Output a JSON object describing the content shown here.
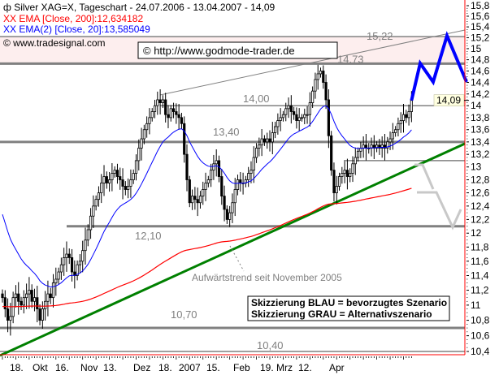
{
  "header": {
    "title": "Silver XAG=X, Tageschart - 24.07.2006 - 13.04.2007 - 14,09",
    "ema200": "XX EMA [Close, 200]:12,634182",
    "ema20": "XX EMA(2) [Close, 20]:13,585049",
    "source": "© www.tradesignal.com",
    "watermark": "© http://www.godmode-trader.de"
  },
  "legend": {
    "blue": "Skizzierung BLAU = bevorzugtes Szenario",
    "grey": "Skizzierung GRAU = Alternativszenario"
  },
  "annotation": "Aufwärtstrend seit November 2005",
  "colors": {
    "ema200": "#ff0000",
    "ema20": "#0000ff",
    "trend": "#008000",
    "scenario_blue": "#0000ff",
    "scenario_grey": "#c8c8c8",
    "resistance_zone": "#fdeeee",
    "levels": "#808080"
  },
  "chart_data": {
    "type": "candlestick",
    "instrument": "Silver XAG=X",
    "period_start": "24.07.2006",
    "period_end": "13.04.2007",
    "last": "14,09",
    "y_scale": "log",
    "ylim": [
      10.4,
      15.8
    ],
    "yticks": [
      "15,8",
      "15,6",
      "15,4",
      "15,2",
      "15",
      "14,8",
      "14,6",
      "14,4",
      "14,2",
      "14",
      "13,8",
      "13,6",
      "13,4",
      "13,2",
      "13",
      "12,8",
      "12,6",
      "12,4",
      "12,2",
      "12",
      "11,8",
      "11,6",
      "11,4",
      "11,2",
      "11",
      "10,8",
      "10,6",
      "10,4"
    ],
    "xticks": [
      "18.",
      "Okt",
      "16.",
      "Nov",
      "13.",
      "Dez",
      "18.",
      "2007",
      "15.",
      "Feb",
      "19.",
      "Mrz",
      "12.",
      "Apr"
    ],
    "closes": [
      11.1,
      10.95,
      10.8,
      10.85,
      11.1,
      11.15,
      11.05,
      11.0,
      11.1,
      11.15,
      11.2,
      11.05,
      11.1,
      10.95,
      10.8,
      10.95,
      11.05,
      11.15,
      11.1,
      11.3,
      11.35,
      11.45,
      11.55,
      11.65,
      11.7,
      11.65,
      11.45,
      11.4,
      11.55,
      11.6,
      11.75,
      11.9,
      12.05,
      12.25,
      12.4,
      12.5,
      12.6,
      12.75,
      12.85,
      12.75,
      12.8,
      12.9,
      12.95,
      12.85,
      12.8,
      12.7,
      12.65,
      12.7,
      12.8,
      12.9,
      13.1,
      13.3,
      13.45,
      13.6,
      13.7,
      13.8,
      13.9,
      14.0,
      14.1,
      14.05,
      14.1,
      13.85,
      13.8,
      13.95,
      13.9,
      13.85,
      13.8,
      13.7,
      13.2,
      12.8,
      12.45,
      12.55,
      12.5,
      12.45,
      12.55,
      12.65,
      12.75,
      12.8,
      12.95,
      13.05,
      13.1,
      12.85,
      12.55,
      12.35,
      12.2,
      12.3,
      12.45,
      12.65,
      12.8,
      12.75,
      12.75,
      12.8,
      12.9,
      12.95,
      13.15,
      13.3,
      13.35,
      13.45,
      13.4,
      13.45,
      13.4,
      13.55,
      13.65,
      13.75,
      13.8,
      13.85,
      13.95,
      14.0,
      13.9,
      13.85,
      13.75,
      13.8,
      13.8,
      13.85,
      13.85,
      14.05,
      14.25,
      14.45,
      14.55,
      14.6,
      14.4,
      14.1,
      13.5,
      12.95,
      12.6,
      12.7,
      12.85,
      12.9,
      12.95,
      12.85,
      12.9,
      13.05,
      13.15,
      13.25,
      13.3,
      13.35,
      13.3,
      13.3,
      13.35,
      13.3,
      13.35,
      13.3,
      13.35,
      13.3,
      13.4,
      13.45,
      13.55,
      13.6,
      13.7,
      13.75,
      13.85,
      13.8,
      13.9,
      14.09
    ],
    "indicators": [
      {
        "name": "EMA [Close, 200]",
        "last": 12.634182
      },
      {
        "name": "EMA(2) [Close, 20]",
        "last": 13.585049
      }
    ],
    "levels": [
      {
        "value": 15.22,
        "label": "15,22"
      },
      {
        "value": 14.73,
        "label": "14,73"
      },
      {
        "value": 14.0,
        "label": "14,00"
      },
      {
        "value": 13.4,
        "label": "13,40"
      },
      {
        "value": 13.1,
        "label": ""
      },
      {
        "value": 12.1,
        "label": "12,10"
      },
      {
        "value": 10.7,
        "label": "10,70"
      },
      {
        "value": 10.4,
        "label": "10,40"
      }
    ],
    "resistance_zone": [
      14.73,
      15.22
    ]
  }
}
